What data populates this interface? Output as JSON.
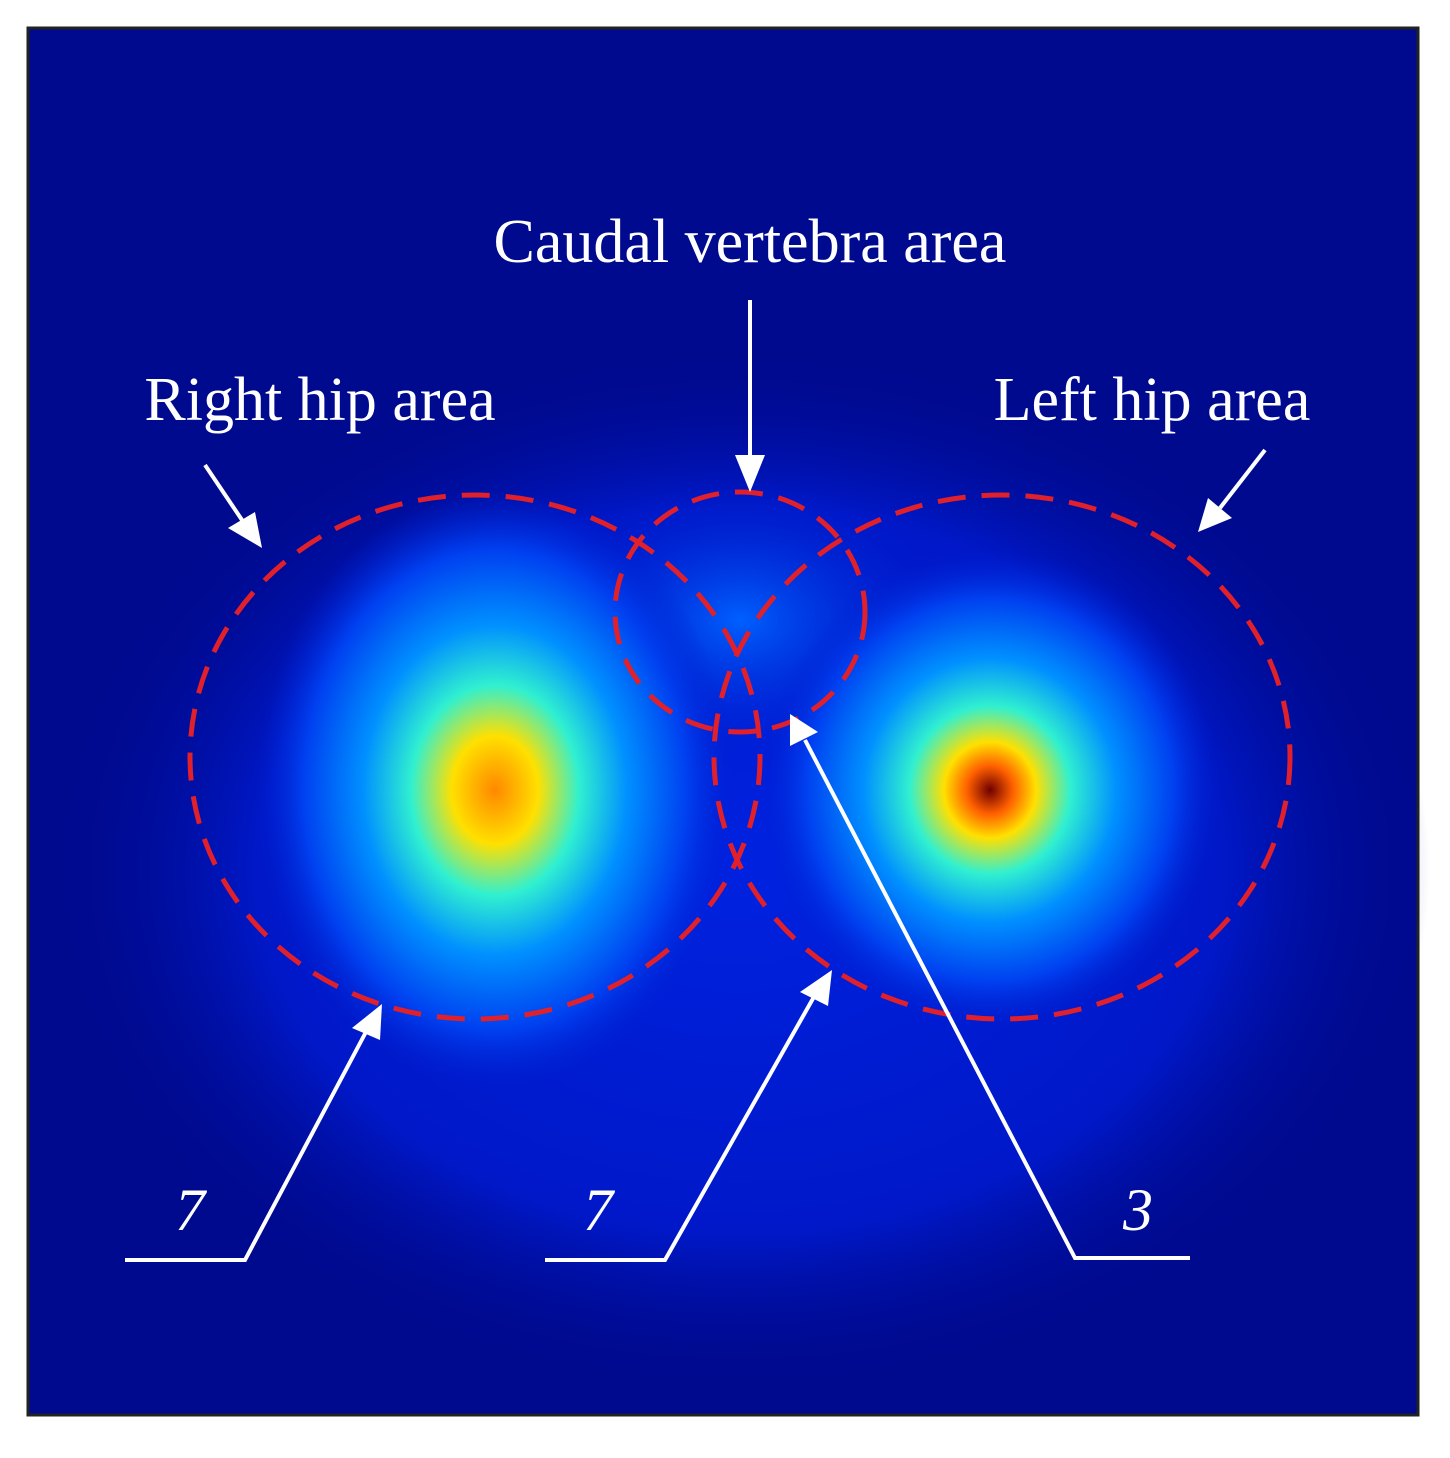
{
  "labels": {
    "caudal": "Caudal vertebra area",
    "right_hip": "Right hip area",
    "left_hip": "Left hip area"
  },
  "callouts": [
    "7",
    "7",
    "3"
  ]
}
